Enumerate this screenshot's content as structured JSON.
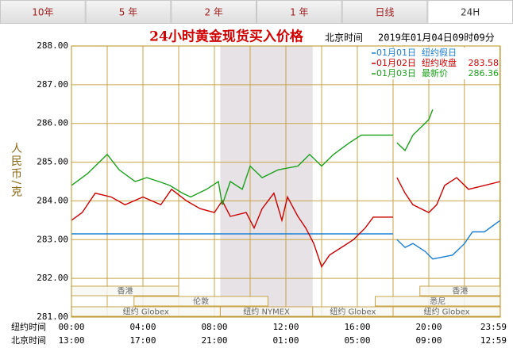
{
  "tabs": {
    "items": [
      "10年",
      "5 年",
      "2 年",
      "1 年",
      "日线",
      "24H"
    ],
    "selected": 5
  },
  "chart_data": {
    "type": "line",
    "title": "24小时黄金现货买入价格",
    "time_label": "北京时间",
    "timestamp": "2019年01月04日09时09分",
    "ylabel": "人民币/克",
    "ylim": [
      281,
      288
    ],
    "yticks": [
      {
        "value": 281,
        "label": "281.00"
      },
      {
        "value": 282,
        "label": "282.00"
      },
      {
        "value": 283,
        "label": "283.00"
      },
      {
        "value": 284,
        "label": "284.00"
      },
      {
        "value": 285,
        "label": "285.00"
      },
      {
        "value": 286,
        "label": "286.00"
      },
      {
        "value": 287,
        "label": "287.00"
      },
      {
        "value": 288,
        "label": "288.00"
      }
    ],
    "xlim": [
      0,
      24
    ],
    "xlabel": "纽约时间",
    "xticks": [
      {
        "value": 0,
        "label": "00:00"
      },
      {
        "value": 4,
        "label": "04:00"
      },
      {
        "value": 8,
        "label": "08:00"
      },
      {
        "value": 12,
        "label": "12:00"
      },
      {
        "value": 16,
        "label": "16:00"
      },
      {
        "value": 20,
        "label": "20:00"
      },
      {
        "value": 23.98,
        "label": "23:59"
      }
    ],
    "x2label": "北京时间",
    "x2ticklabels": [
      "13:00",
      "17:00",
      "21:00",
      "01:00",
      "05:00",
      "09:00",
      "12:59"
    ],
    "grid": true,
    "legend": "top-right",
    "shaded": [
      8.33,
      13.5
    ],
    "sessions": [
      {
        "label": "香港",
        "start": 0,
        "end": 6,
        "row": 0
      },
      {
        "label": "香港",
        "start": 19.5,
        "end": 24,
        "row": 0
      },
      {
        "label": "伦敦",
        "start": 3.5,
        "end": 11,
        "row": 1
      },
      {
        "label": "悉尼",
        "start": 17,
        "end": 24,
        "row": 1
      },
      {
        "label": "纽约 Globex",
        "start": 0,
        "end": 8.33,
        "row": 2
      },
      {
        "label": "纽约 NYMEX",
        "start": 8.33,
        "end": 13.5,
        "row": 2
      },
      {
        "label": "纽约 Globex",
        "start": 13.5,
        "end": 18,
        "row": 2
      },
      {
        "label": "纽约 Globex",
        "start": 18,
        "end": 24,
        "row": 2
      }
    ],
    "series": [
      {
        "name": "01月01日",
        "legend_label": "纽约假日",
        "color": "#1a7fd4",
        "x": [
          0,
          18,
          18.05,
          18.22,
          18.67,
          19.11,
          19.78,
          20.22,
          21.33,
          22,
          22.44,
          23.11,
          24
        ],
        "values": [
          283.15,
          283.15,
          null,
          283.0,
          282.8,
          282.9,
          282.7,
          282.5,
          282.6,
          282.9,
          283.2,
          283.2,
          283.5
        ]
      },
      {
        "name": "01月02日",
        "legend_label": "纽约收盘",
        "legend_value": 283.58,
        "color": "#cc0000",
        "x": [
          0,
          0.6,
          1.33,
          2.22,
          3.0,
          4,
          5.0,
          5.6,
          6.44,
          7.2,
          8,
          8.44,
          8.89,
          9.78,
          10.22,
          10.67,
          11.33,
          11.78,
          12.09,
          12.67,
          13.11,
          13.56,
          14,
          14.44,
          15.11,
          15.78,
          16.44,
          16.89,
          18,
          18.05,
          18.22,
          18.67,
          19.11,
          20,
          20.44,
          20.89,
          21.56,
          22.22,
          23.11,
          24
        ],
        "values": [
          283.5,
          283.7,
          284.2,
          284.1,
          283.9,
          284.1,
          283.9,
          284.3,
          284.0,
          283.8,
          283.7,
          284.0,
          283.6,
          283.7,
          283.3,
          283.8,
          284.2,
          283.5,
          284.1,
          283.6,
          283.3,
          282.9,
          282.3,
          282.6,
          282.8,
          283.0,
          283.3,
          283.58,
          283.58,
          null,
          284.6,
          284.2,
          283.9,
          283.7,
          283.9,
          284.4,
          284.6,
          284.3,
          284.4,
          284.5
        ]
      },
      {
        "name": "01月03日",
        "legend_label": "最新价",
        "legend_value": 286.36,
        "color": "#1aa01a",
        "x": [
          0,
          0.89,
          2,
          2.67,
          3.56,
          4.22,
          4.89,
          5.5,
          6.22,
          6.67,
          7.56,
          8.22,
          8.44,
          8.89,
          9.56,
          10,
          10.67,
          11.56,
          12.67,
          13.33,
          14,
          14.67,
          15.56,
          16.22,
          16.89,
          18,
          18.05,
          18.22,
          18.67,
          19.11,
          19.56,
          20,
          20.22
        ],
        "values": [
          284.4,
          284.7,
          285.2,
          284.8,
          284.5,
          284.6,
          284.5,
          284.4,
          284.2,
          284.1,
          284.3,
          284.5,
          283.9,
          284.5,
          284.3,
          284.9,
          284.6,
          284.8,
          284.9,
          285.2,
          284.9,
          285.2,
          285.5,
          285.7,
          285.7,
          285.7,
          null,
          285.5,
          285.3,
          285.7,
          285.9,
          286.1,
          286.36
        ]
      }
    ]
  }
}
